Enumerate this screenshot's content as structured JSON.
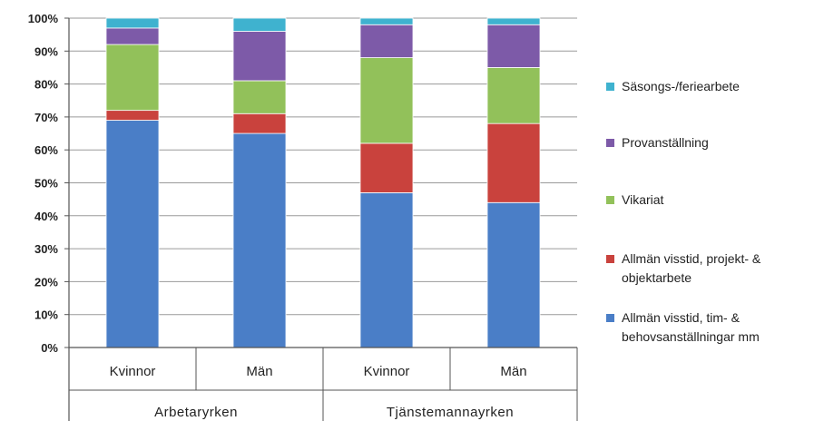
{
  "chart_data": {
    "type": "bar",
    "stacked": true,
    "percent": true,
    "categories": [
      "Kvinnor",
      "Män",
      "Kvinnor",
      "Män"
    ],
    "groups": [
      {
        "label": "Arbetaryrken",
        "categories": [
          0,
          1
        ]
      },
      {
        "label": "Tjänstemannayrken",
        "categories": [
          2,
          3
        ]
      }
    ],
    "series": [
      {
        "name": "Allmän visstid, tim- & behovsanställningar mm",
        "legend_lines": [
          "Allmän visstid, tim- &",
          "behovsanställningar mm"
        ],
        "color": "#4a7ec7",
        "values": [
          69,
          65,
          47,
          44
        ]
      },
      {
        "name": "Allmän visstid, projekt- & objektarbete",
        "legend_lines": [
          "Allmän visstid, projekt- &",
          "objektarbete"
        ],
        "color": "#c9423d",
        "values": [
          3,
          6,
          15,
          24
        ]
      },
      {
        "name": "Vikariat",
        "legend_lines": [
          "Vikariat"
        ],
        "color": "#92c15a",
        "values": [
          20,
          10,
          26,
          17
        ]
      },
      {
        "name": "Provanställning",
        "legend_lines": [
          "Provanställning"
        ],
        "color": "#7d5aa8",
        "values": [
          5,
          15,
          10,
          13
        ]
      },
      {
        "name": "Säsongs-/feriearbete",
        "legend_lines": [
          "Säsongs-/feriearbete"
        ],
        "color": "#3fb2cf",
        "values": [
          3,
          4,
          2,
          2
        ]
      }
    ],
    "y_ticks": [
      "0%",
      "10%",
      "20%",
      "30%",
      "40%",
      "50%",
      "60%",
      "70%",
      "80%",
      "90%",
      "100%"
    ],
    "ylim": [
      0,
      100
    ],
    "grid": true,
    "legend_position": "right"
  }
}
